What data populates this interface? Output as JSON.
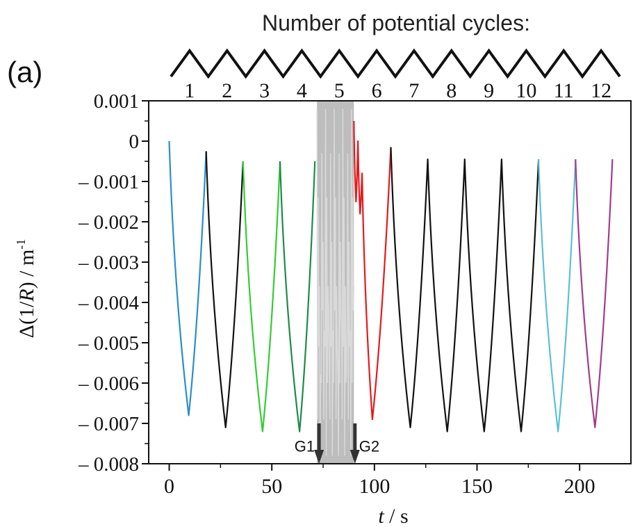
{
  "panel_label": "(a)",
  "cycles_header": {
    "title": "Number of potential cycles:",
    "cycle_numbers": [
      "1",
      "2",
      "3",
      "4",
      "5",
      "6",
      "7",
      "8",
      "9",
      "10",
      "11",
      "12"
    ]
  },
  "chart_data": {
    "type": "line",
    "xlabel_var": "t",
    "xlabel_unit": " / s",
    "ylabel": "Δ(1/R) / m-1",
    "xlim": [
      -10,
      225
    ],
    "ylim": [
      -0.008,
      0.001
    ],
    "x_ticks": [
      0,
      50,
      100,
      150,
      200
    ],
    "x_tick_labels": [
      "0",
      "50",
      "100",
      "150",
      "200"
    ],
    "y_ticks": [
      0.001,
      0,
      -0.001,
      -0.002,
      -0.003,
      -0.004,
      -0.005,
      -0.006,
      -0.007,
      -0.008
    ],
    "y_tick_labels": [
      "0.001",
      "0",
      "– 0.001",
      "– 0.002",
      "– 0.003",
      "– 0.004",
      "– 0.005",
      "– 0.006",
      "– 0.007",
      "– 0.008"
    ],
    "colors": {
      "blue": "#2a8ec8",
      "black": "#111111",
      "green": "#33cc33",
      "darkgreen": "#1e8a4a",
      "gray": "#bdbdbd",
      "red": "#e41a1c",
      "lightblue": "#5bc0d6",
      "purple": "#a23b8c"
    },
    "segments": [
      {
        "color": "blue",
        "points": [
          [
            0,
            0.0
          ],
          [
            9.5,
            -0.0068
          ],
          [
            18,
            -0.00025
          ]
        ]
      },
      {
        "color": "black",
        "points": [
          [
            18,
            -0.00025
          ],
          [
            27.5,
            -0.0071
          ],
          [
            36,
            -0.0005
          ]
        ]
      },
      {
        "color": "green",
        "points": [
          [
            36,
            -0.0005
          ],
          [
            45.5,
            -0.0072
          ],
          [
            54,
            -0.0005
          ]
        ]
      },
      {
        "color": "darkgreen",
        "points": [
          [
            54,
            -0.0005
          ],
          [
            63.5,
            -0.0072
          ],
          [
            71,
            -0.0005
          ]
        ]
      },
      {
        "color": "red",
        "points": [
          [
            90,
            0.0005
          ],
          [
            91,
            -0.0015
          ],
          [
            92,
            0.0
          ],
          [
            93,
            -0.0018
          ],
          [
            94,
            -0.0008
          ],
          [
            99,
            -0.0069
          ],
          [
            108,
            -0.00015
          ]
        ]
      },
      {
        "color": "black",
        "points": [
          [
            108,
            -0.00015
          ],
          [
            117.5,
            -0.0071
          ],
          [
            126,
            -0.00045
          ],
          [
            135.5,
            -0.0072
          ],
          [
            144,
            -0.00045
          ],
          [
            153.5,
            -0.0072
          ],
          [
            162,
            -0.00045
          ],
          [
            171.5,
            -0.0072
          ],
          [
            180,
            -0.00045
          ]
        ]
      },
      {
        "color": "lightblue",
        "points": [
          [
            180,
            -0.00045
          ],
          [
            189.5,
            -0.0072
          ],
          [
            198,
            -0.00045
          ]
        ]
      },
      {
        "color": "purple",
        "points": [
          [
            198,
            -0.00045
          ],
          [
            207.5,
            -0.0071
          ],
          [
            216,
            -0.00045
          ]
        ]
      }
    ],
    "gray_region": {
      "x_range": [
        72,
        90
      ],
      "y_range": [
        -0.008,
        0.001
      ]
    },
    "annotations": [
      {
        "label": "G1",
        "x": 73
      },
      {
        "label": "G2",
        "x": 90.5
      }
    ]
  }
}
